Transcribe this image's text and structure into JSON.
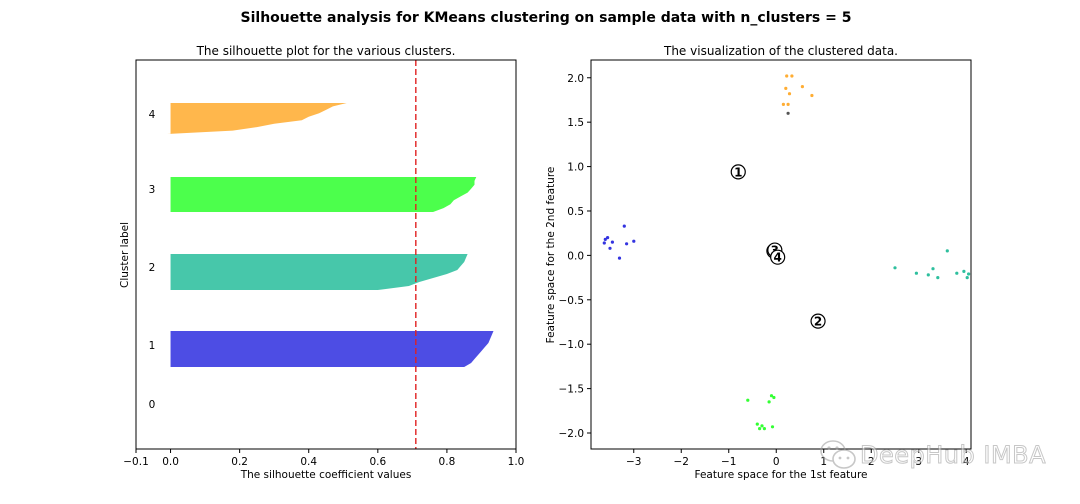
{
  "suptitle": "Silhouette analysis for KMeans clustering on sample data with n_clusters = 5",
  "colors": {
    "cluster_0": "#ffffff",
    "cluster_1": "#3434e0",
    "cluster_2": "#2ebf9e",
    "cluster_3": "#33ff33",
    "cluster_4": "#ffad33",
    "average_line": "#e02020",
    "axis": "#000000"
  },
  "chart_data": [
    {
      "type": "area",
      "title": "The silhouette plot for the various clusters.",
      "xlabel": "The silhouette coefficient values",
      "ylabel": "Cluster label",
      "xlim": [
        -0.1,
        1.0
      ],
      "xticks": [
        -0.1,
        0.0,
        0.2,
        0.4,
        0.6,
        0.8,
        1.0
      ],
      "xtick_labels": [
        "−0.1",
        "0.0",
        "0.2",
        "0.4",
        "0.6",
        "0.8",
        "1.0"
      ],
      "average_silhouette_score": 0.71,
      "grid": false,
      "clusters": [
        {
          "label": "0",
          "sorted_silhouette_values": []
        },
        {
          "label": "1",
          "sorted_silhouette_values": [
            0.85,
            0.87,
            0.88,
            0.89,
            0.9,
            0.91,
            0.92,
            0.925,
            0.93,
            0.935
          ]
        },
        {
          "label": "2",
          "sorted_silhouette_values": [
            0.6,
            0.69,
            0.72,
            0.76,
            0.8,
            0.83,
            0.84,
            0.85,
            0.855,
            0.86
          ]
        },
        {
          "label": "3",
          "sorted_silhouette_values": [
            0.76,
            0.79,
            0.81,
            0.82,
            0.84,
            0.86,
            0.87,
            0.88,
            0.88,
            0.885
          ]
        },
        {
          "label": "4",
          "sorted_silhouette_values": [
            -0.01,
            0.18,
            0.25,
            0.3,
            0.38,
            0.4,
            0.43,
            0.45,
            0.47,
            0.51
          ]
        }
      ]
    },
    {
      "type": "scatter",
      "title": "The visualization of the clustered data.",
      "xlabel": "Feature space for the 1st feature",
      "ylabel": "Feature space for the 2nd feature",
      "xlim": [
        -3.9,
        4.1
      ],
      "ylim": [
        -2.18,
        2.2
      ],
      "xticks": [
        -3,
        -2,
        -1,
        0,
        1,
        2,
        3,
        4
      ],
      "xtick_labels": [
        "−3",
        "−2",
        "−1",
        "0",
        "1",
        "2",
        "3",
        "4"
      ],
      "yticks": [
        -2.0,
        -1.5,
        -1.0,
        -0.5,
        0.0,
        0.5,
        1.0,
        1.5,
        2.0
      ],
      "ytick_labels": [
        "−2.0",
        "−1.5",
        "−1.0",
        "−0.5",
        "0.0",
        "0.5",
        "1.0",
        "1.5",
        "2.0"
      ],
      "grid": false,
      "series": [
        {
          "cluster": 0,
          "points": [
            [
              0.25,
              1.6
            ]
          ]
        },
        {
          "cluster": 1,
          "points": [
            [
              -3.6,
              0.18
            ],
            [
              -3.55,
              0.2
            ],
            [
              -3.5,
              0.08
            ],
            [
              -3.45,
              0.15
            ],
            [
              -3.3,
              -0.03
            ],
            [
              -3.2,
              0.33
            ],
            [
              -3.15,
              0.13
            ],
            [
              -3.0,
              0.16
            ],
            [
              -3.62,
              0.14
            ]
          ]
        },
        {
          "cluster": 2,
          "points": [
            [
              2.5,
              -0.14
            ],
            [
              2.95,
              -0.2
            ],
            [
              3.2,
              -0.22
            ],
            [
              3.3,
              -0.15
            ],
            [
              3.4,
              -0.25
            ],
            [
              3.6,
              0.05
            ],
            [
              3.8,
              -0.2
            ],
            [
              3.95,
              -0.18
            ],
            [
              4.02,
              -0.25
            ],
            [
              4.05,
              -0.21
            ]
          ]
        },
        {
          "cluster": 3,
          "points": [
            [
              -0.6,
              -1.63
            ],
            [
              -0.4,
              -1.9
            ],
            [
              -0.35,
              -1.95
            ],
            [
              -0.3,
              -1.92
            ],
            [
              -0.25,
              -1.95
            ],
            [
              -0.15,
              -1.65
            ],
            [
              -0.1,
              -1.58
            ],
            [
              -0.05,
              -1.6
            ],
            [
              -0.08,
              -1.93
            ]
          ]
        },
        {
          "cluster": 4,
          "points": [
            [
              0.15,
              1.7
            ],
            [
              0.2,
              1.88
            ],
            [
              0.22,
              2.02
            ],
            [
              0.28,
              1.82
            ],
            [
              0.33,
              2.02
            ],
            [
              0.55,
              1.9
            ],
            [
              0.75,
              1.8
            ],
            [
              0.25,
              1.7
            ]
          ]
        }
      ],
      "centers": [
        {
          "label": "0",
          "x": -0.05,
          "y": 0.05
        },
        {
          "label": "1",
          "x": -0.8,
          "y": 0.94
        },
        {
          "label": "2",
          "x": 0.88,
          "y": -0.74
        },
        {
          "label": "3",
          "x": -0.03,
          "y": 0.06
        },
        {
          "label": "4",
          "x": 0.03,
          "y": -0.02
        }
      ]
    }
  ],
  "watermark": "DeepHub IMBA"
}
